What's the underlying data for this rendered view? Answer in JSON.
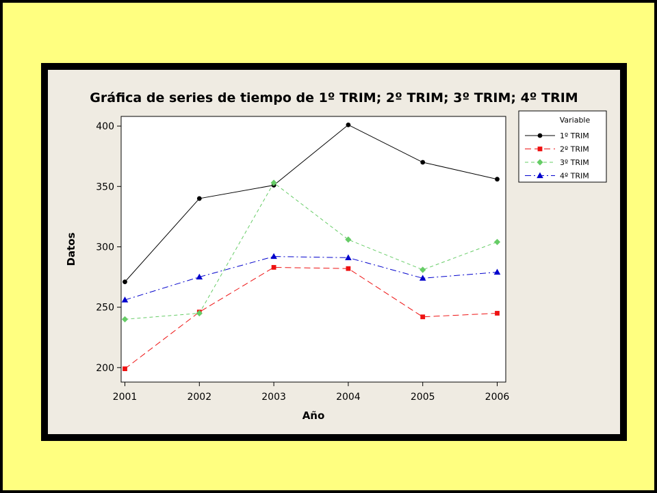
{
  "colors": {
    "background": "#ffff80",
    "frame": "#000000",
    "panel": "#efebe2",
    "plot_area": "#ffffff"
  },
  "chart_data": {
    "type": "line",
    "title": "Gráfica de series de tiempo de 1º TRIM; 2º TRIM; 3º TRIM; 4º TRIM",
    "xlabel": "Año",
    "ylabel": "Datos",
    "categories": [
      "2001",
      "2002",
      "2003",
      "2004",
      "2005",
      "2006"
    ],
    "y_ticks": [
      200,
      250,
      300,
      350,
      400
    ],
    "ylim": [
      188,
      408
    ],
    "grid": false,
    "legend_title": "Variable",
    "legend_position": "right",
    "series": [
      {
        "name": "1º TRIM",
        "values": [
          271,
          340,
          351,
          401,
          370,
          356
        ],
        "color": "#000000",
        "marker": "circle",
        "dash": "solid"
      },
      {
        "name": "2º TRIM",
        "values": [
          199,
          246,
          283,
          282,
          242,
          245
        ],
        "color": "#ee1111",
        "marker": "square",
        "dash": "long-dash"
      },
      {
        "name": "3º TRIM",
        "values": [
          240,
          245,
          353,
          306,
          281,
          304
        ],
        "color": "#66cc66",
        "marker": "diamond",
        "dash": "dash"
      },
      {
        "name": "4º TRIM",
        "values": [
          256,
          275,
          292,
          291,
          274,
          279
        ],
        "color": "#0000cc",
        "marker": "triangle",
        "dash": "dash-dot"
      }
    ]
  }
}
